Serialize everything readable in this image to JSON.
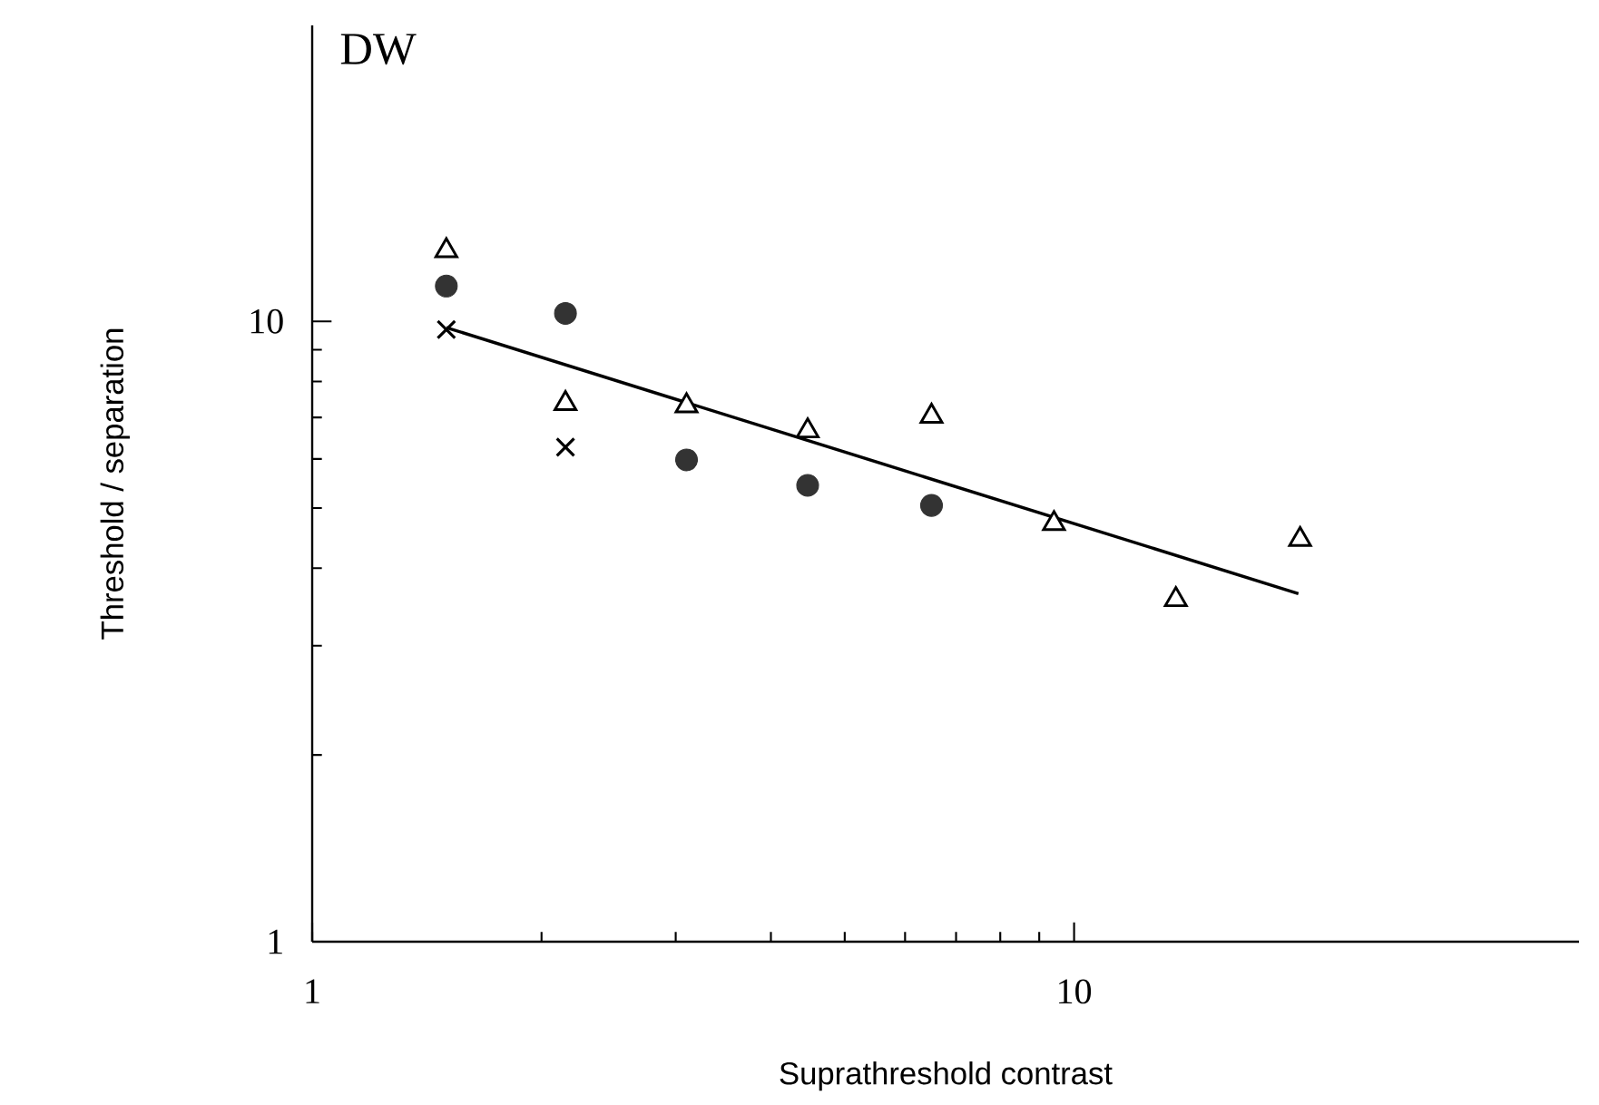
{
  "chart_data": {
    "type": "scatter",
    "title": "DW",
    "xlabel": "Suprathreshold contrast",
    "ylabel": "Threshold / separation",
    "log": "xy",
    "xlim": [
      1,
      46
    ],
    "ylim": [
      1,
      30
    ],
    "xticks": [
      1,
      10
    ],
    "yticks": [
      1,
      10
    ],
    "series": [
      {
        "marker": "triangle",
        "color": "#000000",
        "x": [
          1.5,
          2.15,
          3.1,
          4.47,
          6.5,
          9.41,
          13.6,
          19.8
        ],
        "values": [
          13.0,
          7.37,
          7.31,
          6.66,
          7.03,
          4.72,
          3.56,
          4.45
        ]
      },
      {
        "marker": "circle",
        "color": "#333333",
        "x": [
          1.5,
          2.15,
          3.1,
          4.47,
          6.5
        ],
        "values": [
          11.4,
          10.3,
          5.98,
          5.44,
          5.05
        ]
      },
      {
        "marker": "cross",
        "color": "#000000",
        "x": [
          1.5,
          2.15
        ],
        "values": [
          9.7,
          6.27
        ]
      },
      {
        "type": "line",
        "marker": "none",
        "color": "#000000",
        "x": [
          1.5,
          19.7
        ],
        "values": [
          9.77,
          3.64
        ]
      }
    ]
  }
}
